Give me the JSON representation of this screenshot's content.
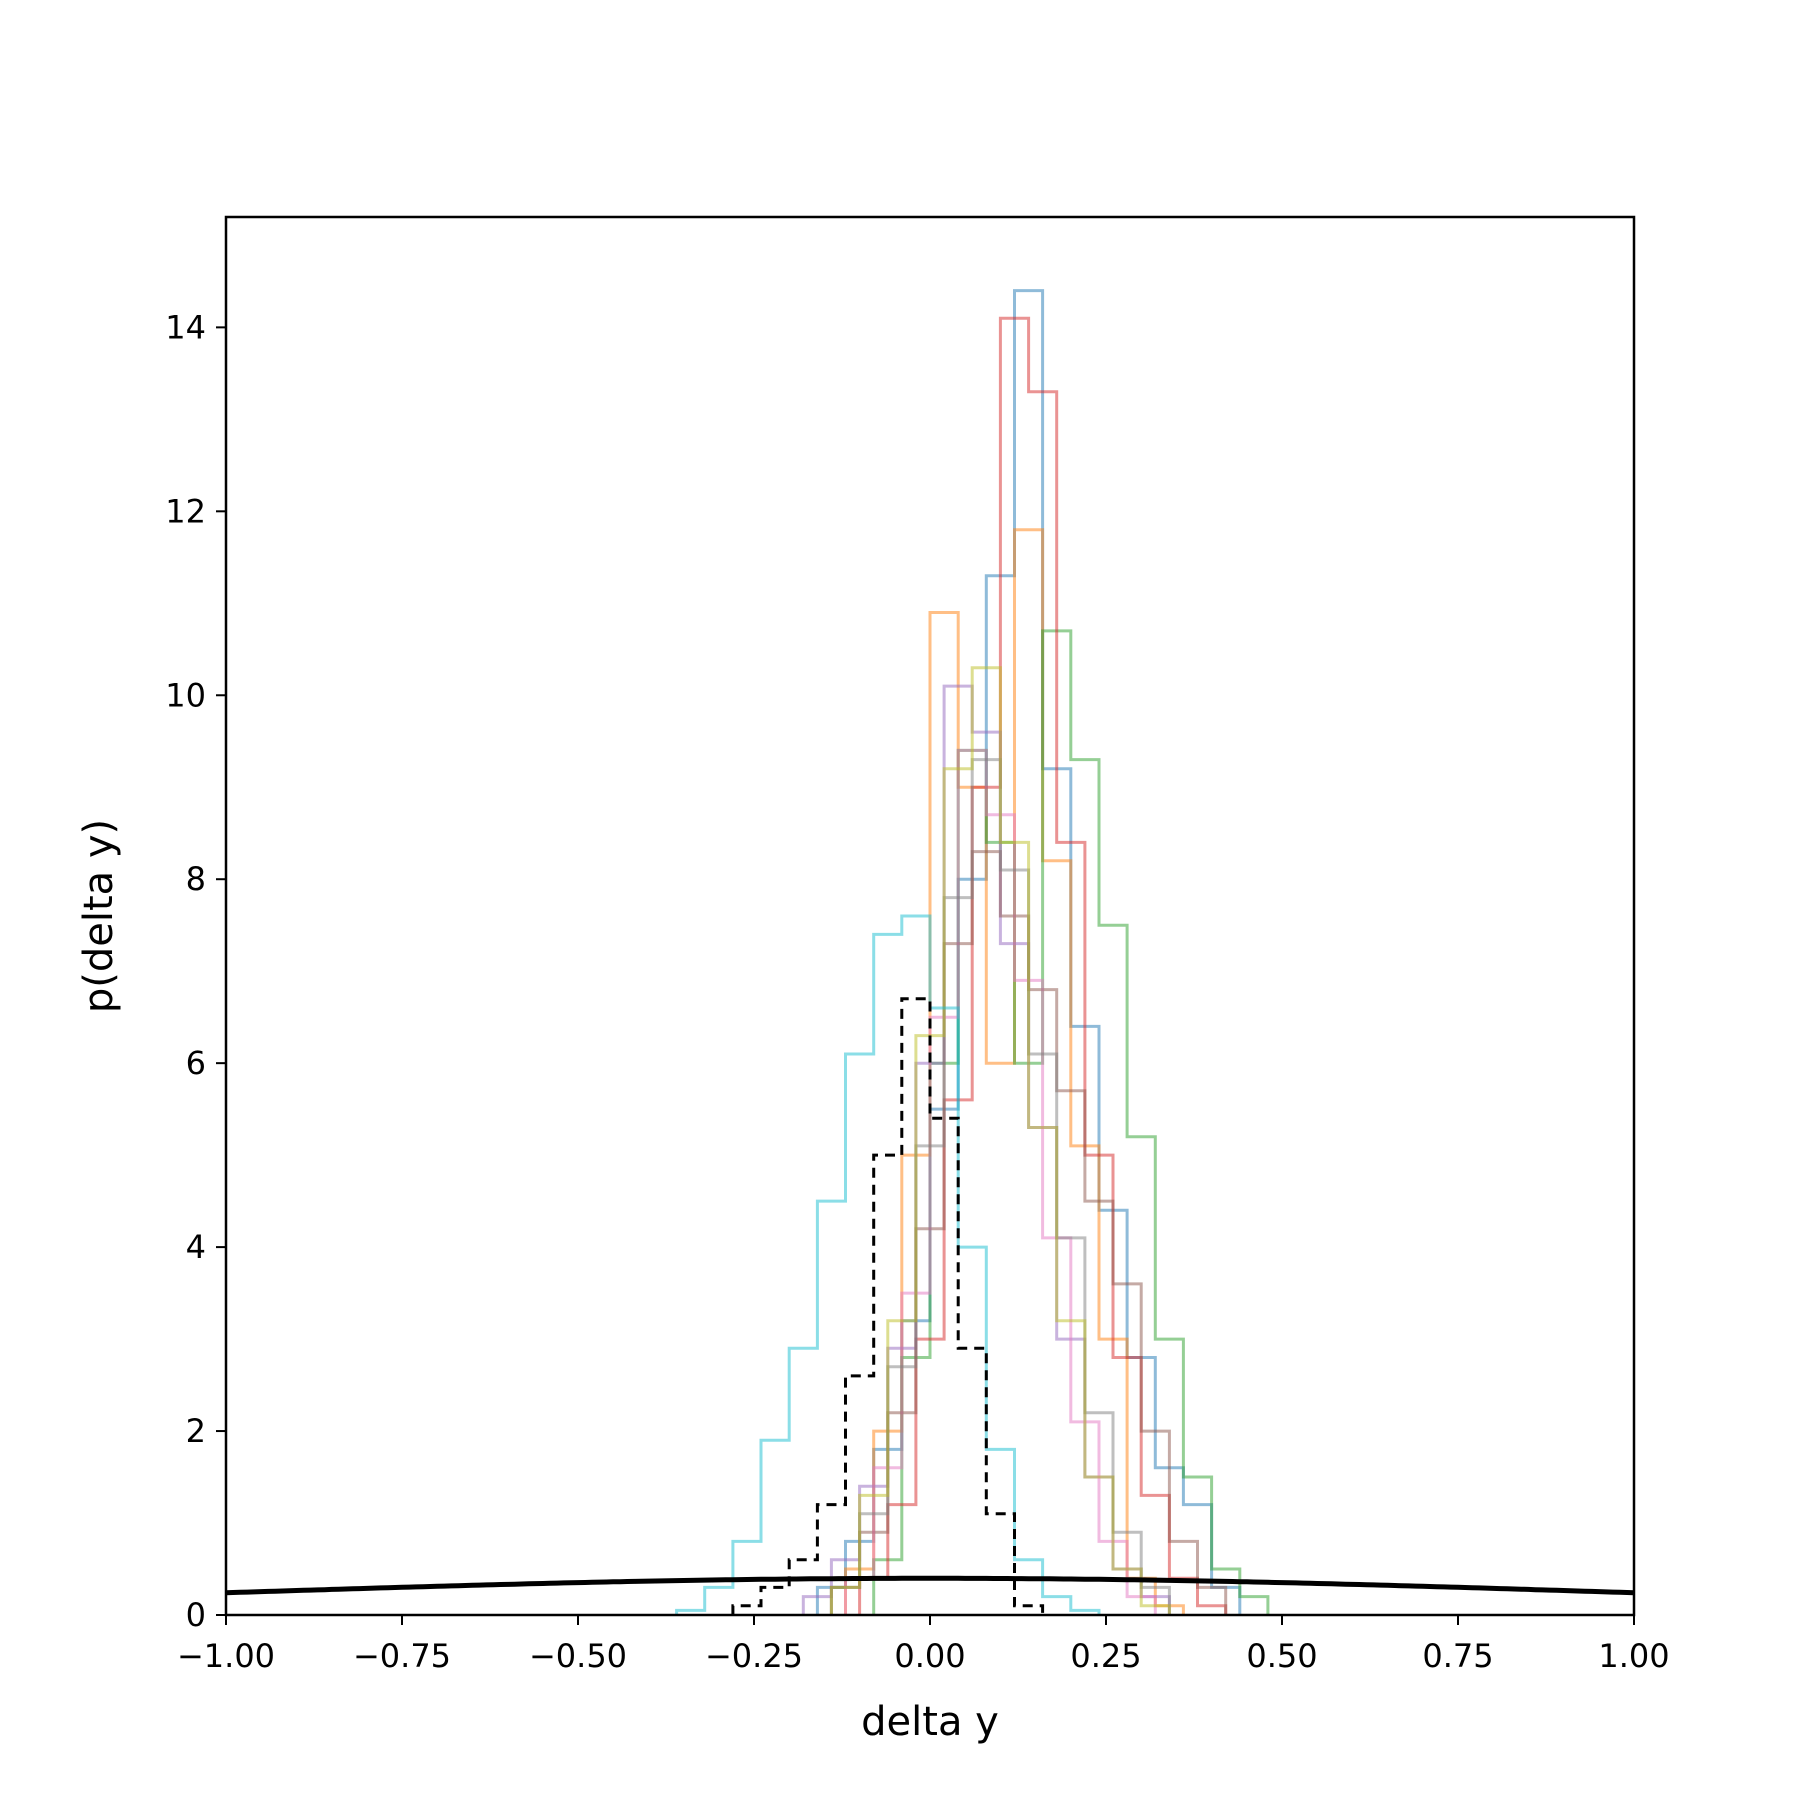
{
  "chart_data": {
    "type": "histogram",
    "title": "",
    "xlabel": "delta y",
    "ylabel": "p(delta y)",
    "xlim": [
      -1.0,
      1.0
    ],
    "ylim": [
      0,
      15.2
    ],
    "xticks": [
      -1.0,
      -0.75,
      -0.5,
      -0.25,
      0.0,
      0.25,
      0.5,
      0.75,
      1.0
    ],
    "xtick_labels": [
      "−1.00",
      "−0.75",
      "−0.50",
      "−0.25",
      "0.00",
      "0.25",
      "0.50",
      "0.75",
      "1.00"
    ],
    "yticks": [
      0,
      2,
      4,
      6,
      8,
      10,
      12,
      14
    ],
    "ytick_labels": [
      "0",
      "2",
      "4",
      "6",
      "8",
      "10",
      "12",
      "14"
    ],
    "grid": false,
    "legend": false,
    "bin_width": 0.04,
    "series": [
      {
        "color": "#1f77b4",
        "bin_start": -0.16,
        "values": [
          0.3,
          0.8,
          1.8,
          3.2,
          5.5,
          8.0,
          11.3,
          14.4,
          9.2,
          6.4,
          4.4,
          2.8,
          1.6,
          1.2,
          0.3
        ]
      },
      {
        "color": "#ff7f0e",
        "bin_start": -0.12,
        "values": [
          0.5,
          2.0,
          5.0,
          10.9,
          9.0,
          6.0,
          11.8,
          8.2,
          5.1,
          3.0,
          0.4,
          0.1
        ]
      },
      {
        "color": "#2ca02c",
        "bin_start": -0.08,
        "values": [
          0.6,
          2.8,
          6.0,
          9.4,
          8.4,
          6.0,
          10.7,
          9.3,
          7.5,
          5.2,
          3.0,
          1.5,
          0.5,
          0.2
        ]
      },
      {
        "color": "#d62728",
        "bin_start": -0.1,
        "values": [
          0.4,
          1.2,
          3.0,
          5.6,
          9.0,
          14.1,
          13.3,
          8.4,
          5.0,
          2.8,
          1.3,
          0.4,
          0.1
        ]
      },
      {
        "color": "#9467bd",
        "bin_start": -0.18,
        "values": [
          0.2,
          0.6,
          1.4,
          2.9,
          6.0,
          10.1,
          9.6,
          7.3,
          5.3,
          3.0,
          1.5,
          0.5,
          0.2
        ]
      },
      {
        "color": "#8c564b",
        "bin_start": -0.14,
        "values": [
          0.3,
          0.9,
          2.2,
          4.2,
          7.3,
          8.3,
          7.6,
          6.8,
          5.7,
          4.5,
          3.6,
          2.0,
          0.8,
          0.3
        ]
      },
      {
        "color": "#e377c2",
        "bin_start": -0.12,
        "values": [
          0.4,
          1.6,
          3.5,
          6.5,
          9.4,
          8.7,
          6.9,
          4.1,
          2.1,
          0.8,
          0.2
        ]
      },
      {
        "color": "#7f7f7f",
        "bin_start": -0.14,
        "values": [
          0.3,
          1.1,
          2.7,
          5.1,
          7.8,
          9.3,
          8.1,
          6.1,
          4.1,
          2.2,
          0.9,
          0.3
        ]
      },
      {
        "color": "#bcbd22",
        "bin_start": -0.14,
        "values": [
          0.3,
          1.3,
          3.2,
          6.3,
          9.2,
          10.3,
          8.4,
          5.3,
          3.2,
          1.5,
          0.5,
          0.1
        ]
      },
      {
        "color": "#17becf",
        "bin_start": -0.36,
        "values": [
          0.05,
          0.3,
          0.8,
          1.9,
          2.9,
          4.5,
          6.1,
          7.4,
          7.6,
          6.6,
          4.0,
          1.8,
          0.6,
          0.2,
          0.05
        ]
      }
    ],
    "reference_histogram": {
      "color": "#000000",
      "style": "dashed",
      "bin_start": -0.28,
      "values": [
        0.1,
        0.3,
        0.6,
        1.2,
        2.6,
        5.0,
        6.7,
        5.4,
        2.9,
        1.1,
        0.1
      ]
    },
    "reference_curve": {
      "color": "#000000",
      "type": "gaussian",
      "mean": 0.0,
      "sigma": 1.0
    }
  }
}
